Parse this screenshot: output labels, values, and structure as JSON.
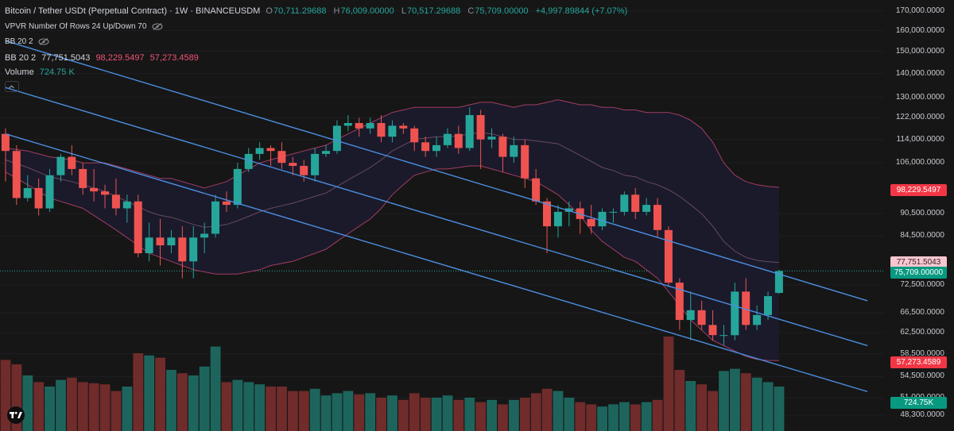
{
  "header": {
    "symbol": "Bitcoin / Tether USDt (Perpetual Contract) · 1W · BINANCEUSDM",
    "o_tag": "O",
    "o_val": "70,711.29688",
    "h_tag": "H",
    "h_val": "76,009.00000",
    "l_tag": "L",
    "l_val": "70,517.29688",
    "c_tag": "C",
    "c_val": "75,709.00000",
    "change": "+4,997.89844 (+7.07%)"
  },
  "indicators": {
    "vpvr": "VPVR Number Of Rows 24 Up/Down 70",
    "bb_hidden": "BB 20 2",
    "bb_label": "BB 20 2",
    "bb_mid": "77,751.5043",
    "bb_upper": "98,229.5497",
    "bb_lower": "57,273.4589",
    "volume_label": "Volume",
    "volume_value": "724.75 K"
  },
  "price_labels": {
    "bb_upper": "98,229.5497",
    "bb_mid": "77,751.5043",
    "last": "75,709.00000",
    "bb_lower": "57,273.4589",
    "volume": "724.75K"
  },
  "colors": {
    "up": "#26a69a",
    "down": "#ef5350",
    "vol_up": "#1e6e64",
    "vol_down": "#7a2e2e",
    "band_fill": "#1a1a2c",
    "band_line": "#a33d62",
    "channel": "#4c8ee0",
    "background": "#161616"
  },
  "chart_data": {
    "type": "candlestick",
    "title": "Bitcoin / Tether USDt (Perpetual Contract) · 1W · BINANCEUSDM",
    "y_scale": "log",
    "ylim": [
      46000,
      176000
    ],
    "yticks": [
      "170,000.0000",
      "160,000.0000",
      "150,000.0000",
      "140,000.0000",
      "130,000.0000",
      "122,000.0000",
      "114,000.0000",
      "106,000.0000",
      "90,500.0000",
      "84,500.0000",
      "72,500.0000",
      "66,500.0000",
      "62,500.0000",
      "58,500.0000",
      "54,500.0000",
      "51,000.0000",
      "48,300.0000"
    ],
    "candles": [
      [
        116000,
        110000,
        118000,
        100000
      ],
      [
        110000,
        95000,
        112000,
        93000
      ],
      [
        95000,
        98000,
        102000,
        94000
      ],
      [
        98000,
        92000,
        101000,
        90000
      ],
      [
        92000,
        102000,
        104000,
        91000
      ],
      [
        102000,
        108000,
        109000,
        100000
      ],
      [
        108000,
        104000,
        112000,
        102000
      ],
      [
        104000,
        98000,
        106000,
        96000
      ],
      [
        98000,
        97000,
        104000,
        94000
      ],
      [
        97000,
        96000,
        99000,
        92000
      ],
      [
        96000,
        92000,
        101000,
        90000
      ],
      [
        92000,
        94000,
        96000,
        88000
      ],
      [
        94000,
        80000,
        96000,
        79000
      ],
      [
        80000,
        84000,
        88000,
        78000
      ],
      [
        84000,
        82000,
        89000,
        77000
      ],
      [
        82000,
        84000,
        86000,
        80000
      ],
      [
        84000,
        78000,
        87000,
        74000
      ],
      [
        78000,
        84000,
        87000,
        74000
      ],
      [
        84000,
        85000,
        88000,
        80000
      ],
      [
        85000,
        94000,
        96000,
        84000
      ],
      [
        94000,
        93000,
        97000,
        91000
      ],
      [
        93000,
        104000,
        106000,
        92000
      ],
      [
        104000,
        109000,
        111000,
        103000
      ],
      [
        109000,
        111000,
        113000,
        107000
      ],
      [
        111000,
        110000,
        112000,
        105000
      ],
      [
        110000,
        106000,
        113000,
        104000
      ],
      [
        106000,
        105000,
        108000,
        102000
      ],
      [
        105000,
        102000,
        107000,
        100000
      ],
      [
        102000,
        109000,
        111000,
        100000
      ],
      [
        109000,
        110000,
        112000,
        108000
      ],
      [
        110000,
        119000,
        121000,
        109000
      ],
      [
        119000,
        120000,
        123000,
        117000
      ],
      [
        120000,
        118000,
        122000,
        115000
      ],
      [
        118000,
        120000,
        122000,
        116000
      ],
      [
        120000,
        115000,
        123000,
        113000
      ],
      [
        115000,
        119000,
        121000,
        113000
      ],
      [
        119000,
        118000,
        120000,
        116000
      ],
      [
        118000,
        113000,
        119000,
        110000
      ],
      [
        113000,
        110000,
        115000,
        108000
      ],
      [
        110000,
        112000,
        115000,
        108000
      ],
      [
        112000,
        116000,
        118000,
        111000
      ],
      [
        116000,
        111000,
        119000,
        109000
      ],
      [
        111000,
        123000,
        126000,
        110000
      ],
      [
        123000,
        114000,
        125000,
        104000
      ],
      [
        114000,
        115000,
        118000,
        111000
      ],
      [
        115000,
        108000,
        116000,
        103000
      ],
      [
        108000,
        112000,
        115000,
        106000
      ],
      [
        112000,
        101000,
        114000,
        98000
      ],
      [
        101000,
        94000,
        104000,
        93000
      ],
      [
        94000,
        87000,
        95000,
        80000
      ],
      [
        87000,
        91000,
        93000,
        84000
      ],
      [
        91000,
        92000,
        94000,
        87000
      ],
      [
        92000,
        89000,
        94000,
        85000
      ],
      [
        89000,
        87000,
        93000,
        85000
      ],
      [
        87000,
        91000,
        92000,
        86000
      ],
      [
        91000,
        91000,
        92000,
        88000
      ],
      [
        91000,
        96000,
        97000,
        90000
      ],
      [
        96000,
        91000,
        98000,
        89000
      ],
      [
        91000,
        93000,
        95000,
        90000
      ],
      [
        93000,
        86000,
        95000,
        84000
      ],
      [
        86000,
        73000,
        87000,
        72000
      ],
      [
        73000,
        65000,
        74000,
        63000
      ],
      [
        65000,
        67000,
        71000,
        61000
      ],
      [
        67000,
        64000,
        69000,
        63000
      ],
      [
        64000,
        62000,
        67000,
        61000
      ],
      [
        62000,
        62000,
        64000,
        60000
      ],
      [
        62000,
        71000,
        73000,
        61000
      ],
      [
        71000,
        64000,
        74000,
        63000
      ],
      [
        64000,
        66000,
        68000,
        63000
      ],
      [
        66000,
        70000,
        71000,
        65000
      ],
      [
        70711.29688,
        75709,
        76009,
        70517.29688
      ]
    ],
    "volume": [
      64,
      60,
      50,
      44,
      40,
      46,
      48,
      44,
      43,
      42,
      36,
      40,
      70,
      68,
      66,
      55,
      52,
      50,
      58,
      76,
      44,
      46,
      44,
      42,
      40,
      40,
      36,
      36,
      38,
      32,
      34,
      36,
      33,
      34,
      30,
      32,
      28,
      34,
      30,
      30,
      32,
      28,
      30,
      26,
      28,
      24,
      28,
      30,
      34,
      38,
      36,
      30,
      26,
      24,
      22,
      24,
      26,
      24,
      26,
      28,
      85,
      55,
      45,
      42,
      36,
      54,
      56,
      52,
      48,
      44,
      40
    ],
    "bb_upper": [
      111000,
      110500,
      110000,
      109000,
      108000,
      107500,
      107000,
      106000,
      106000,
      106000,
      105000,
      104000,
      103000,
      102000,
      101000,
      101000,
      100000,
      99000,
      98000,
      99000,
      100000,
      102000,
      104000,
      106000,
      107000,
      108000,
      109000,
      110000,
      111000,
      112000,
      114000,
      116000,
      118000,
      120000,
      122000,
      124000,
      125000,
      126000,
      126000,
      126000,
      126000,
      126000,
      127000,
      128000,
      128000,
      127000,
      126000,
      127000,
      127000,
      128000,
      129000,
      128000,
      127000,
      127000,
      126000,
      126000,
      125000,
      125000,
      124000,
      124000,
      124000,
      123000,
      121000,
      118000,
      113000,
      106000,
      102000,
      100000,
      99000,
      98500,
      98229.5497
    ],
    "bb_lower": [
      103000,
      101000,
      99000,
      97000,
      95000,
      94000,
      93000,
      92000,
      90000,
      88000,
      86000,
      84000,
      82000,
      80000,
      79000,
      78000,
      77000,
      76000,
      75500,
      75000,
      75000,
      75000,
      75500,
      76000,
      77000,
      77500,
      78000,
      79000,
      80000,
      81000,
      83000,
      85000,
      87000,
      89000,
      92000,
      96000,
      99000,
      102000,
      103000,
      104000,
      104000,
      104500,
      105000,
      105000,
      104000,
      103000,
      102000,
      101000,
      100000,
      98000,
      96000,
      93000,
      90000,
      86000,
      83000,
      81000,
      79000,
      78000,
      76000,
      74000,
      71000,
      68000,
      65000,
      63000,
      61000,
      60000,
      59000,
      58000,
      57500,
      57300,
      57273.4589
    ],
    "bb_mid": [
      107000,
      105750,
      104500,
      103000,
      101500,
      100750,
      100000,
      99000,
      98000,
      97000,
      95500,
      94000,
      92500,
      91000,
      90000,
      89500,
      88500,
      87500,
      86750,
      87000,
      87500,
      88500,
      89750,
      91000,
      92000,
      92750,
      93500,
      94500,
      95500,
      96500,
      98500,
      100500,
      102500,
      104500,
      107000,
      110000,
      112000,
      114000,
      114500,
      115000,
      115000,
      115250,
      116000,
      116500,
      116000,
      115000,
      114000,
      114000,
      113500,
      113000,
      112500,
      110500,
      108500,
      106500,
      104500,
      103500,
      102000,
      101500,
      100000,
      99000,
      97500,
      95500,
      93000,
      90500,
      87000,
      83000,
      80500,
      79000,
      78250,
      77900,
      77751.5043
    ],
    "channel_lines": [
      {
        "name": "upper",
        "from": {
          "x": 0,
          "y": 155000
        },
        "to": {
          "x": 78,
          "y": 69000
        }
      },
      {
        "name": "middle",
        "from": {
          "x": 0,
          "y": 134000
        },
        "to": {
          "x": 78,
          "y": 60000
        }
      },
      {
        "name": "lower",
        "from": {
          "x": 0,
          "y": 116000
        },
        "to": {
          "x": 78,
          "y": 52000
        }
      }
    ],
    "x_start": -0.5,
    "x_end": 79.5
  }
}
